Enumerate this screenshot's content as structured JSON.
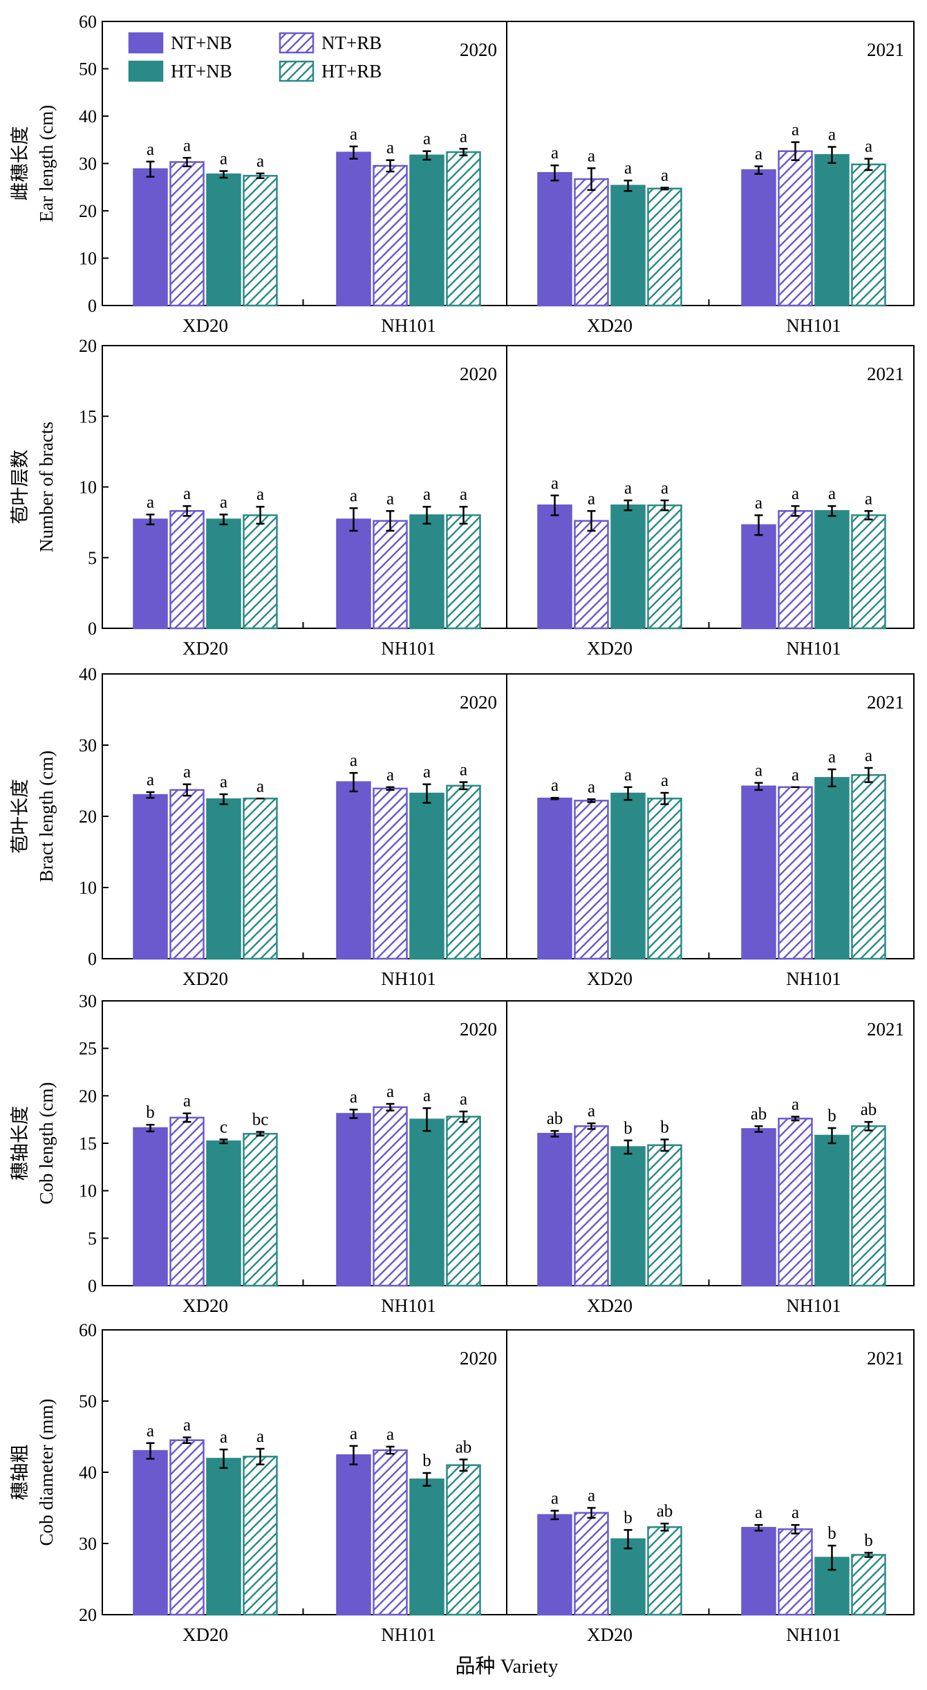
{
  "legend": [
    {
      "label": "NT+NB",
      "color": "#6a5acd",
      "hatched": false
    },
    {
      "label": "NT+RB",
      "color": "#6a5acd",
      "hatched": true
    },
    {
      "label": "HT+NB",
      "color": "#2a8a87",
      "hatched": false
    },
    {
      "label": "HT+RB",
      "color": "#2a8a87",
      "hatched": true
    }
  ],
  "x_title": "品种 Variety",
  "chart_data": [
    {
      "type": "bar",
      "ylabel_cn": "雌穗长度",
      "ylabel_en": "Ear length (cm)",
      "ylim": [
        0,
        60
      ],
      "yticks": [
        0,
        10,
        20,
        30,
        40,
        50,
        60
      ],
      "categories": [
        "XD20",
        "NH101"
      ],
      "panels": [
        {
          "year": "2020",
          "series": [
            {
              "name": "NT+NB",
              "values": [
                28.8,
                32.3
              ],
              "errors": [
                1.6,
                1.3
              ],
              "labels": [
                "a",
                "a"
              ]
            },
            {
              "name": "NT+RB",
              "values": [
                30.3,
                29.5
              ],
              "errors": [
                0.9,
                1.2
              ],
              "labels": [
                "a",
                "a"
              ]
            },
            {
              "name": "HT+NB",
              "values": [
                27.7,
                31.7
              ],
              "errors": [
                0.7,
                0.9
              ],
              "labels": [
                "a",
                "a"
              ]
            },
            {
              "name": "HT+RB",
              "values": [
                27.4,
                32.4
              ],
              "errors": [
                0.5,
                0.7
              ],
              "labels": [
                "a",
                "a"
              ]
            }
          ]
        },
        {
          "year": "2021",
          "series": [
            {
              "name": "NT+NB",
              "values": [
                28.0,
                28.6
              ],
              "errors": [
                1.6,
                0.8
              ],
              "labels": [
                "a",
                "a"
              ]
            },
            {
              "name": "NT+RB",
              "values": [
                26.7,
                32.6
              ],
              "errors": [
                2.3,
                1.9
              ],
              "labels": [
                "a",
                "a"
              ]
            },
            {
              "name": "HT+NB",
              "values": [
                25.3,
                31.8
              ],
              "errors": [
                1.1,
                1.7
              ],
              "labels": [
                "a",
                "a"
              ]
            },
            {
              "name": "HT+RB",
              "values": [
                24.7,
                29.8
              ],
              "errors": [
                0.2,
                1.2
              ],
              "labels": [
                "a",
                "a"
              ]
            }
          ]
        }
      ]
    },
    {
      "type": "bar",
      "ylabel_cn": "苞叶层数",
      "ylabel_en": "Number of bracts",
      "ylim": [
        0,
        20
      ],
      "yticks": [
        0,
        5,
        10,
        15,
        20
      ],
      "categories": [
        "XD20",
        "NH101"
      ],
      "panels": [
        {
          "year": "2020",
          "series": [
            {
              "name": "NT+NB",
              "values": [
                7.7,
                7.7
              ],
              "errors": [
                0.35,
                0.8
              ],
              "labels": [
                "a",
                "a"
              ]
            },
            {
              "name": "NT+RB",
              "values": [
                8.3,
                7.6
              ],
              "errors": [
                0.35,
                0.7
              ],
              "labels": [
                "a",
                "a"
              ]
            },
            {
              "name": "HT+NB",
              "values": [
                7.7,
                8.0
              ],
              "errors": [
                0.35,
                0.6
              ],
              "labels": [
                "a",
                "a"
              ]
            },
            {
              "name": "HT+RB",
              "values": [
                8.0,
                8.0
              ],
              "errors": [
                0.6,
                0.6
              ],
              "labels": [
                "a",
                "a"
              ]
            }
          ]
        },
        {
          "year": "2021",
          "series": [
            {
              "name": "NT+NB",
              "values": [
                8.7,
                7.3
              ],
              "errors": [
                0.7,
                0.7
              ],
              "labels": [
                "a",
                "a"
              ]
            },
            {
              "name": "NT+RB",
              "values": [
                7.6,
                8.3
              ],
              "errors": [
                0.7,
                0.35
              ],
              "labels": [
                "a",
                "a"
              ]
            },
            {
              "name": "HT+NB",
              "values": [
                8.7,
                8.3
              ],
              "errors": [
                0.35,
                0.35
              ],
              "labels": [
                "a",
                "a"
              ]
            },
            {
              "name": "HT+RB",
              "values": [
                8.7,
                8.0
              ],
              "errors": [
                0.35,
                0.3
              ],
              "labels": [
                "a",
                "a"
              ]
            }
          ]
        }
      ]
    },
    {
      "type": "bar",
      "ylabel_cn": "苞叶长度",
      "ylabel_en": "Bract length (cm)",
      "ylim": [
        0,
        40
      ],
      "yticks": [
        0,
        10,
        20,
        30,
        40
      ],
      "categories": [
        "XD20",
        "NH101"
      ],
      "panels": [
        {
          "year": "2020",
          "series": [
            {
              "name": "NT+NB",
              "values": [
                23.0,
                24.8
              ],
              "errors": [
                0.4,
                1.3
              ],
              "labels": [
                "a",
                "a"
              ]
            },
            {
              "name": "NT+RB",
              "values": [
                23.7,
                23.9
              ],
              "errors": [
                0.8,
                0.2
              ],
              "labels": [
                "a",
                "a"
              ]
            },
            {
              "name": "HT+NB",
              "values": [
                22.4,
                23.2
              ],
              "errors": [
                0.7,
                1.3
              ],
              "labels": [
                "a",
                "a"
              ]
            },
            {
              "name": "HT+RB",
              "values": [
                22.5,
                24.3
              ],
              "errors": [
                0.0,
                0.5
              ],
              "labels": [
                "a",
                "a"
              ]
            }
          ]
        },
        {
          "year": "2021",
          "series": [
            {
              "name": "NT+NB",
              "values": [
                22.5,
                24.2
              ],
              "errors": [
                0.1,
                0.5
              ],
              "labels": [
                "a",
                "a"
              ]
            },
            {
              "name": "NT+RB",
              "values": [
                22.2,
                24.1
              ],
              "errors": [
                0.2,
                0.0
              ],
              "labels": [
                "a",
                "a"
              ]
            },
            {
              "name": "HT+NB",
              "values": [
                23.2,
                25.4
              ],
              "errors": [
                0.9,
                1.2
              ],
              "labels": [
                "a",
                "a"
              ]
            },
            {
              "name": "HT+RB",
              "values": [
                22.5,
                25.8
              ],
              "errors": [
                0.8,
                1.0
              ],
              "labels": [
                "a",
                "a"
              ]
            }
          ]
        }
      ]
    },
    {
      "type": "bar",
      "ylabel_cn": "穗轴长度",
      "ylabel_en": "Cob length (cm)",
      "ylim": [
        0,
        30
      ],
      "yticks": [
        0,
        5,
        10,
        15,
        20,
        25,
        30
      ],
      "categories": [
        "XD20",
        "NH101"
      ],
      "panels": [
        {
          "year": "2020",
          "series": [
            {
              "name": "NT+NB",
              "values": [
                16.6,
                18.1
              ],
              "errors": [
                0.35,
                0.45
              ],
              "labels": [
                "b",
                "a"
              ]
            },
            {
              "name": "NT+RB",
              "values": [
                17.7,
                18.8
              ],
              "errors": [
                0.45,
                0.35
              ],
              "labels": [
                "a",
                "a"
              ]
            },
            {
              "name": "HT+NB",
              "values": [
                15.2,
                17.5
              ],
              "errors": [
                0.2,
                1.2
              ],
              "labels": [
                "c",
                "a"
              ]
            },
            {
              "name": "HT+RB",
              "values": [
                16.0,
                17.8
              ],
              "errors": [
                0.2,
                0.55
              ],
              "labels": [
                "bc",
                "a"
              ]
            }
          ]
        },
        {
          "year": "2021",
          "series": [
            {
              "name": "NT+NB",
              "values": [
                16.0,
                16.5
              ],
              "errors": [
                0.3,
                0.3
              ],
              "labels": [
                "ab",
                "ab"
              ]
            },
            {
              "name": "NT+RB",
              "values": [
                16.8,
                17.6
              ],
              "errors": [
                0.3,
                0.2
              ],
              "labels": [
                "a",
                "a"
              ]
            },
            {
              "name": "HT+NB",
              "values": [
                14.6,
                15.8
              ],
              "errors": [
                0.7,
                0.8
              ],
              "labels": [
                "b",
                "b"
              ]
            },
            {
              "name": "HT+RB",
              "values": [
                14.8,
                16.8
              ],
              "errors": [
                0.6,
                0.45
              ],
              "labels": [
                "b",
                "ab"
              ]
            }
          ]
        }
      ]
    },
    {
      "type": "bar",
      "ylabel_cn": "穗轴粗",
      "ylabel_en": "Cob diameter (mm)",
      "ylim": [
        20,
        60
      ],
      "yticks": [
        20,
        30,
        40,
        50,
        60
      ],
      "categories": [
        "XD20",
        "NH101"
      ],
      "panels": [
        {
          "year": "2020",
          "series": [
            {
              "name": "NT+NB",
              "values": [
                43.0,
                42.4
              ],
              "errors": [
                1.1,
                1.3
              ],
              "labels": [
                "a",
                "a"
              ]
            },
            {
              "name": "NT+RB",
              "values": [
                44.5,
                43.1
              ],
              "errors": [
                0.4,
                0.5
              ],
              "labels": [
                "a",
                "a"
              ]
            },
            {
              "name": "HT+NB",
              "values": [
                41.9,
                39.0
              ],
              "errors": [
                1.3,
                0.9
              ],
              "labels": [
                "a",
                "b"
              ]
            },
            {
              "name": "HT+RB",
              "values": [
                42.2,
                41.0
              ],
              "errors": [
                1.1,
                0.8
              ],
              "labels": [
                "a",
                "ab"
              ]
            }
          ]
        },
        {
          "year": "2021",
          "series": [
            {
              "name": "NT+NB",
              "values": [
                34.0,
                32.2
              ],
              "errors": [
                0.6,
                0.4
              ],
              "labels": [
                "a",
                "a"
              ]
            },
            {
              "name": "NT+RB",
              "values": [
                34.3,
                32.0
              ],
              "errors": [
                0.7,
                0.6
              ],
              "labels": [
                "a",
                "a"
              ]
            },
            {
              "name": "HT+NB",
              "values": [
                30.6,
                28.0
              ],
              "errors": [
                1.3,
                1.7
              ],
              "labels": [
                "b",
                "b"
              ]
            },
            {
              "name": "HT+RB",
              "values": [
                32.3,
                28.4
              ],
              "errors": [
                0.5,
                0.3
              ],
              "labels": [
                "ab",
                "b"
              ]
            }
          ]
        }
      ]
    }
  ]
}
